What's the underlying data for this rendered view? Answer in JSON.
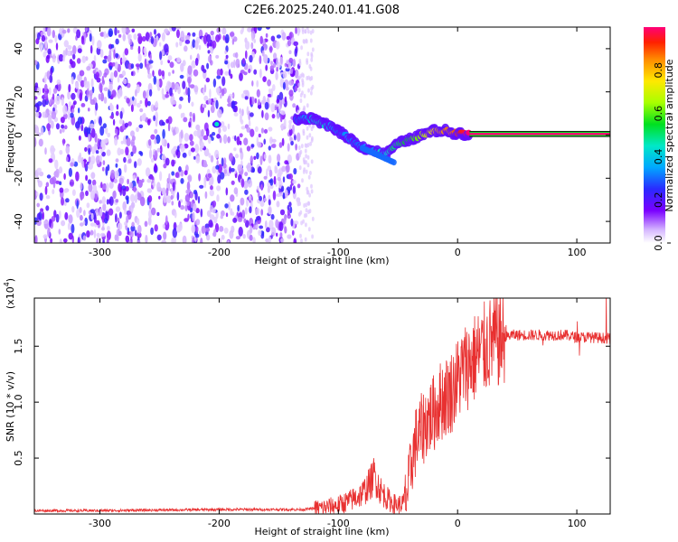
{
  "title": "C2E6.2025.240.01.41.G08",
  "chart_data": [
    {
      "type": "heatmap",
      "xlabel": "Height of straight line (km)",
      "ylabel": "Frequency (Hz)",
      "xlim": [
        -355,
        128
      ],
      "ylim": [
        -50,
        50
      ],
      "xticks": [
        -300,
        -200,
        -100,
        0,
        100
      ],
      "yticks": [
        -40,
        -20,
        0,
        20,
        40
      ],
      "colorbar": {
        "label": "Normalized spectral amplitude",
        "range": [
          0,
          1
        ],
        "ticks": [
          0.0,
          0.2,
          0.4,
          0.6,
          0.8
        ]
      },
      "signal_track": {
        "x": [
          -135,
          -128,
          -120,
          -112,
          -105,
          -98,
          -92,
          -85,
          -78,
          -72,
          -66,
          -60,
          -55,
          -50,
          -45,
          -40,
          -35,
          -30,
          -25,
          -20,
          -15,
          -10,
          -5,
          0,
          5,
          10,
          128
        ],
        "y": [
          7,
          8,
          7,
          5,
          4,
          1,
          -1,
          -4,
          -6,
          -7,
          -8,
          -9,
          -6,
          -4,
          -3,
          -2,
          -1,
          0,
          1,
          2,
          2,
          2,
          1,
          1,
          0.5,
          0.5,
          0.5
        ],
        "amplitude": [
          0.3,
          0.35,
          0.4,
          0.45,
          0.35,
          0.3,
          0.35,
          0.3,
          0.35,
          0.3,
          0.45,
          0.4,
          0.5,
          0.5,
          0.55,
          0.55,
          0.6,
          0.65,
          0.7,
          0.75,
          0.8,
          0.85,
          0.85,
          0.9,
          0.95,
          1.0,
          1.0
        ]
      },
      "noise_region": [
        -355,
        -133
      ]
    },
    {
      "type": "line",
      "xlabel": "Height of straight line (km)",
      "ylabel": "SNR (10 * v/v)",
      "yscale_label": "(x10",
      "yscale_exp": "4",
      "yscale_close": ")",
      "xlim": [
        -355,
        128
      ],
      "ylim": [
        0,
        1.93
      ],
      "xticks": [
        -300,
        -200,
        -100,
        0,
        100
      ],
      "yticks": [
        0.5,
        1.0,
        1.5
      ],
      "ytick_labels": [
        "0.5",
        "1.0",
        "1.5"
      ],
      "series": [
        {
          "color": "#e83030",
          "x": [
            -355,
            -300,
            -200,
            -130,
            -110,
            -100,
            -95,
            -90,
            -85,
            -80,
            -75,
            -72,
            -70,
            -68,
            -65,
            -60,
            -55,
            -50,
            -45,
            -42,
            -40,
            -38,
            -35,
            -30,
            -25,
            -20,
            -15,
            -10,
            -5,
            0,
            5,
            10,
            15,
            20,
            25,
            30,
            35,
            40,
            45,
            50,
            60,
            70,
            80,
            90,
            100,
            110,
            128
          ],
          "y": [
            0.03,
            0.03,
            0.04,
            0.04,
            0.06,
            0.08,
            0.1,
            0.12,
            0.15,
            0.18,
            0.25,
            0.3,
            0.35,
            0.3,
            0.22,
            0.15,
            0.1,
            0.08,
            0.1,
            0.2,
            0.35,
            0.5,
            0.65,
            0.75,
            0.85,
            0.9,
            1.0,
            1.05,
            1.1,
            1.2,
            1.3,
            1.35,
            1.4,
            1.45,
            1.5,
            1.55,
            1.55,
            1.58,
            1.6,
            1.6,
            1.6,
            1.6,
            1.6,
            1.6,
            1.58,
            1.58,
            1.57
          ]
        }
      ]
    }
  ]
}
